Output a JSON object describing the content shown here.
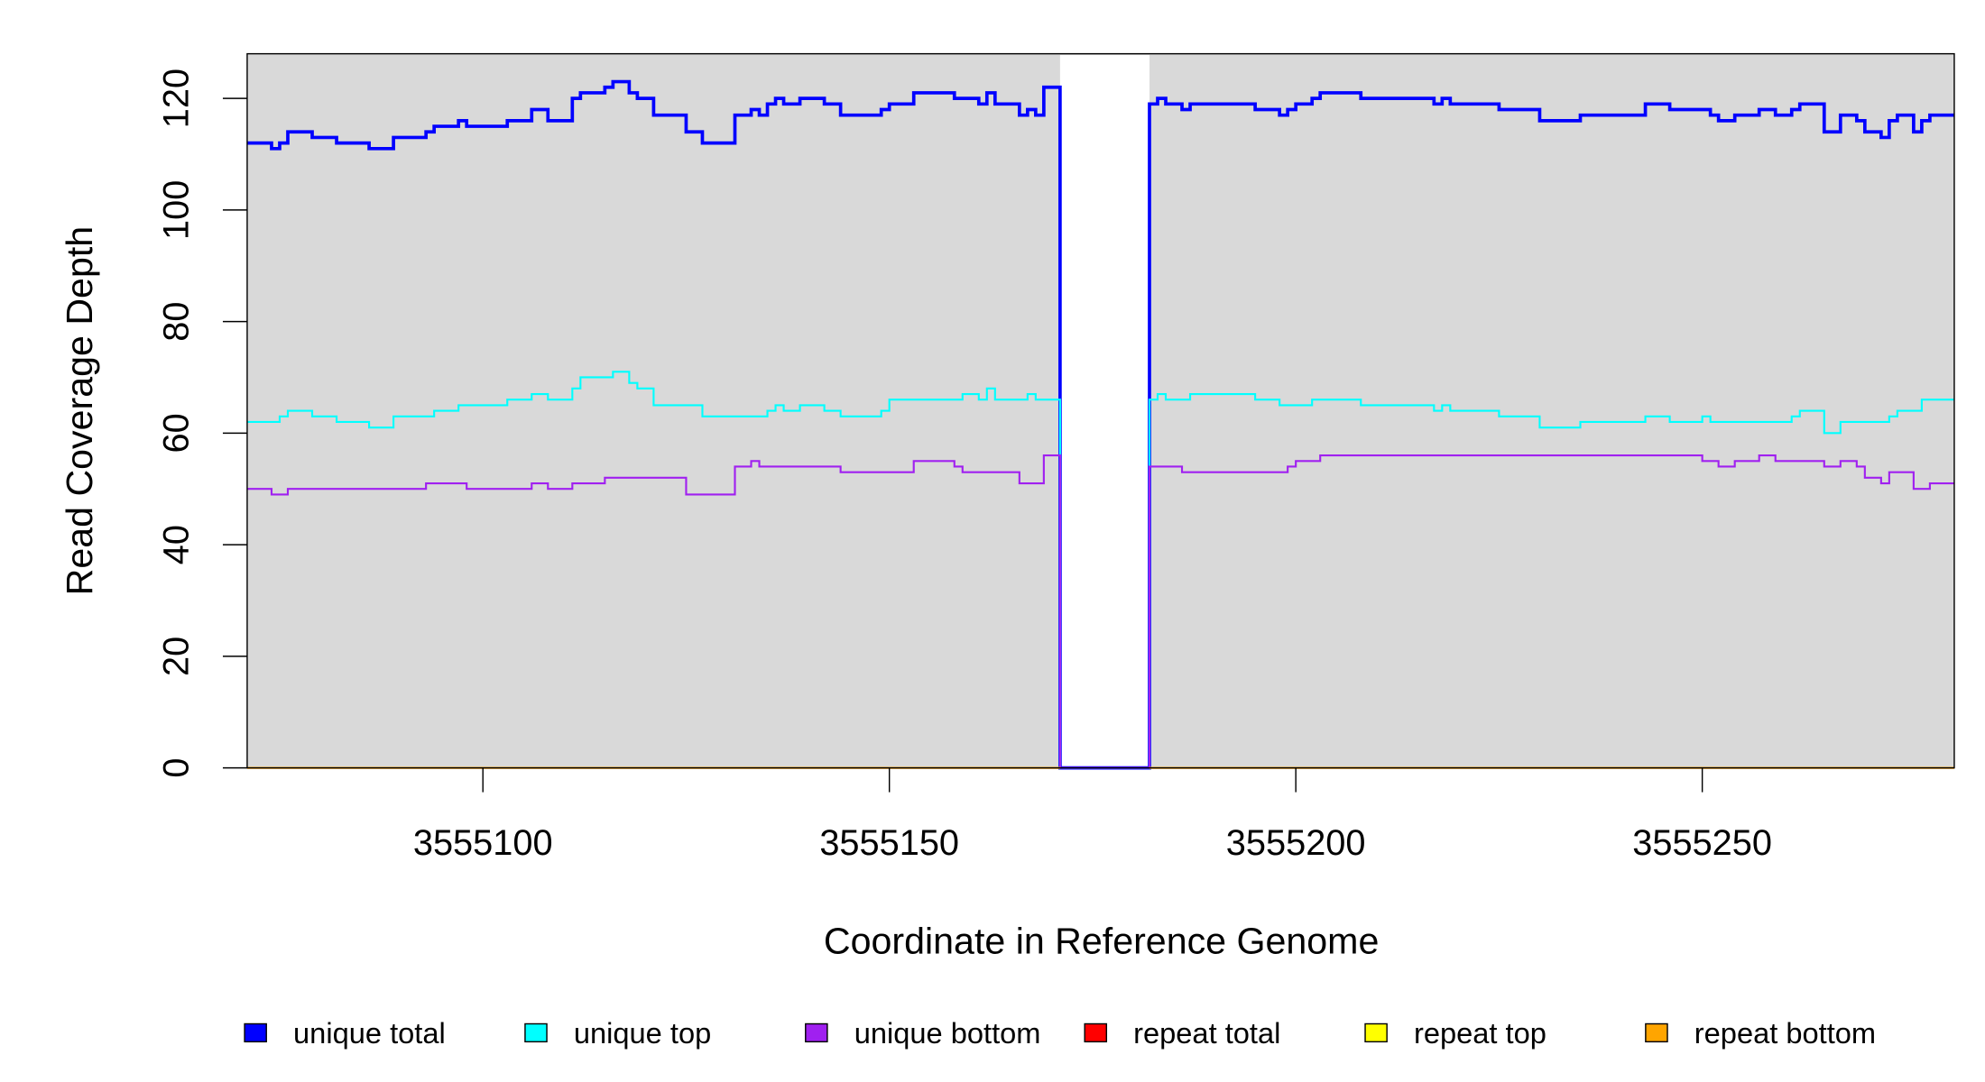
{
  "chart_data": {
    "type": "line",
    "step": true,
    "title": "",
    "xlabel": "Coordinate in Reference Genome",
    "ylabel": "Read Coverage Depth",
    "xlim": [
      3555071,
      3555281
    ],
    "ylim": [
      0,
      128
    ],
    "x_ticks": [
      3555100,
      3555150,
      3555200,
      3555250
    ],
    "x_tick_labels": [
      "3555100",
      "3555150",
      "3555200",
      "3555250"
    ],
    "y_ticks": [
      0,
      20,
      40,
      60,
      80,
      100,
      120
    ],
    "y_tick_labels": [
      "0",
      "20",
      "40",
      "60",
      "80",
      "100",
      "120"
    ],
    "background": "#d9d9d9",
    "gap_region": [
      3555171,
      3555182
    ],
    "legend_placement": "bottom",
    "series": [
      {
        "name": "unique total",
        "color": "#0000ff",
        "width": 2.6,
        "steps": [
          [
            3555071,
            112
          ],
          [
            3555074,
            111
          ],
          [
            3555075,
            112
          ],
          [
            3555076,
            114
          ],
          [
            3555079,
            113
          ],
          [
            3555082,
            112
          ],
          [
            3555086,
            111
          ],
          [
            3555089,
            113
          ],
          [
            3555093,
            114
          ],
          [
            3555094,
            115
          ],
          [
            3555097,
            116
          ],
          [
            3555098,
            115
          ],
          [
            3555103,
            116
          ],
          [
            3555106,
            118
          ],
          [
            3555108,
            116
          ],
          [
            3555111,
            120
          ],
          [
            3555112,
            121
          ],
          [
            3555115,
            122
          ],
          [
            3555116,
            123
          ],
          [
            3555118,
            121
          ],
          [
            3555119,
            120
          ],
          [
            3555121,
            117
          ],
          [
            3555125,
            114
          ],
          [
            3555127,
            112
          ],
          [
            3555131,
            117
          ],
          [
            3555133,
            118
          ],
          [
            3555134,
            117
          ],
          [
            3555135,
            119
          ],
          [
            3555136,
            120
          ],
          [
            3555137,
            119
          ],
          [
            3555139,
            120
          ],
          [
            3555142,
            119
          ],
          [
            3555144,
            117
          ],
          [
            3555149,
            118
          ],
          [
            3555150,
            119
          ],
          [
            3555153,
            121
          ],
          [
            3555158,
            120
          ],
          [
            3555161,
            119
          ],
          [
            3555162,
            121
          ],
          [
            3555163,
            119
          ],
          [
            3555166,
            117
          ],
          [
            3555167,
            118
          ],
          [
            3555168,
            117
          ],
          [
            3555169,
            122
          ],
          [
            3555171,
            0
          ],
          [
            3555182,
            119
          ],
          [
            3555183,
            120
          ],
          [
            3555184,
            119
          ],
          [
            3555186,
            118
          ],
          [
            3555187,
            119
          ],
          [
            3555195,
            118
          ],
          [
            3555198,
            117
          ],
          [
            3555199,
            118
          ],
          [
            3555200,
            119
          ],
          [
            3555202,
            120
          ],
          [
            3555203,
            121
          ],
          [
            3555208,
            120
          ],
          [
            3555217,
            119
          ],
          [
            3555218,
            120
          ],
          [
            3555219,
            119
          ],
          [
            3555225,
            118
          ],
          [
            3555230,
            116
          ],
          [
            3555235,
            117
          ],
          [
            3555243,
            119
          ],
          [
            3555246,
            118
          ],
          [
            3555251,
            117
          ],
          [
            3555252,
            116
          ],
          [
            3555254,
            117
          ],
          [
            3555257,
            118
          ],
          [
            3555259,
            117
          ],
          [
            3555261,
            118
          ],
          [
            3555262,
            119
          ],
          [
            3555265,
            114
          ],
          [
            3555267,
            117
          ],
          [
            3555269,
            116
          ],
          [
            3555270,
            114
          ],
          [
            3555272,
            113
          ],
          [
            3555273,
            116
          ],
          [
            3555274,
            117
          ],
          [
            3555276,
            114
          ],
          [
            3555277,
            116
          ],
          [
            3555278,
            117
          ]
        ]
      },
      {
        "name": "unique top",
        "color": "#00ffff",
        "width": 1.5,
        "steps": [
          [
            3555071,
            62
          ],
          [
            3555075,
            63
          ],
          [
            3555076,
            64
          ],
          [
            3555079,
            63
          ],
          [
            3555082,
            62
          ],
          [
            3555086,
            61
          ],
          [
            3555089,
            63
          ],
          [
            3555094,
            64
          ],
          [
            3555097,
            65
          ],
          [
            3555103,
            66
          ],
          [
            3555106,
            67
          ],
          [
            3555108,
            66
          ],
          [
            3555111,
            68
          ],
          [
            3555112,
            70
          ],
          [
            3555116,
            71
          ],
          [
            3555118,
            69
          ],
          [
            3555119,
            68
          ],
          [
            3555121,
            65
          ],
          [
            3555127,
            63
          ],
          [
            3555135,
            64
          ],
          [
            3555136,
            65
          ],
          [
            3555137,
            64
          ],
          [
            3555139,
            65
          ],
          [
            3555142,
            64
          ],
          [
            3555144,
            63
          ],
          [
            3555149,
            64
          ],
          [
            3555150,
            66
          ],
          [
            3555159,
            67
          ],
          [
            3555161,
            66
          ],
          [
            3555162,
            68
          ],
          [
            3555163,
            66
          ],
          [
            3555167,
            67
          ],
          [
            3555168,
            66
          ],
          [
            3555171,
            0
          ],
          [
            3555182,
            66
          ],
          [
            3555183,
            67
          ],
          [
            3555184,
            66
          ],
          [
            3555187,
            67
          ],
          [
            3555195,
            66
          ],
          [
            3555198,
            65
          ],
          [
            3555202,
            66
          ],
          [
            3555208,
            65
          ],
          [
            3555217,
            64
          ],
          [
            3555218,
            65
          ],
          [
            3555219,
            64
          ],
          [
            3555225,
            63
          ],
          [
            3555230,
            61
          ],
          [
            3555235,
            62
          ],
          [
            3555243,
            63
          ],
          [
            3555246,
            62
          ],
          [
            3555250,
            63
          ],
          [
            3555251,
            62
          ],
          [
            3555261,
            63
          ],
          [
            3555262,
            64
          ],
          [
            3555265,
            60
          ],
          [
            3555267,
            62
          ],
          [
            3555273,
            63
          ],
          [
            3555274,
            64
          ],
          [
            3555277,
            66
          ]
        ]
      },
      {
        "name": "unique bottom",
        "color": "#a020f0",
        "width": 1.5,
        "steps": [
          [
            3555071,
            50
          ],
          [
            3555074,
            49
          ],
          [
            3555076,
            50
          ],
          [
            3555093,
            51
          ],
          [
            3555098,
            50
          ],
          [
            3555106,
            51
          ],
          [
            3555108,
            50
          ],
          [
            3555111,
            51
          ],
          [
            3555115,
            52
          ],
          [
            3555125,
            49
          ],
          [
            3555131,
            54
          ],
          [
            3555133,
            55
          ],
          [
            3555134,
            54
          ],
          [
            3555144,
            53
          ],
          [
            3555153,
            55
          ],
          [
            3555158,
            54
          ],
          [
            3555159,
            53
          ],
          [
            3555166,
            51
          ],
          [
            3555169,
            56
          ],
          [
            3555171,
            0
          ],
          [
            3555182,
            54
          ],
          [
            3555186,
            53
          ],
          [
            3555199,
            54
          ],
          [
            3555200,
            55
          ],
          [
            3555203,
            56
          ],
          [
            3555250,
            55
          ],
          [
            3555252,
            54
          ],
          [
            3555254,
            55
          ],
          [
            3555257,
            56
          ],
          [
            3555259,
            55
          ],
          [
            3555265,
            54
          ],
          [
            3555267,
            55
          ],
          [
            3555269,
            54
          ],
          [
            3555270,
            52
          ],
          [
            3555272,
            51
          ],
          [
            3555273,
            53
          ],
          [
            3555276,
            50
          ],
          [
            3555278,
            51
          ]
        ]
      },
      {
        "name": "repeat total",
        "color": "#ff0000",
        "width": 1.5,
        "steps": [
          [
            3555071,
            0
          ],
          [
            3555171,
            null
          ],
          [
            3555182,
            0
          ]
        ]
      },
      {
        "name": "repeat top",
        "color": "#ffff00",
        "width": 1.5,
        "steps": [
          [
            3555071,
            0
          ],
          [
            3555171,
            null
          ],
          [
            3555182,
            0
          ]
        ]
      },
      {
        "name": "repeat bottom",
        "color": "#ffa500",
        "width": 1.5,
        "steps": [
          [
            3555071,
            0
          ],
          [
            3555171,
            null
          ],
          [
            3555182,
            0
          ]
        ]
      }
    ]
  }
}
